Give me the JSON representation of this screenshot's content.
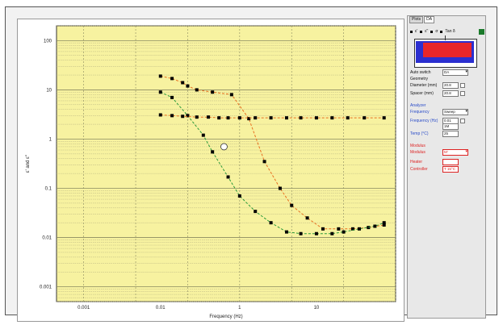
{
  "panel": {
    "tabs": [
      "Plots",
      "DA"
    ],
    "active_tab": "DA",
    "legend_items": [
      "ε'",
      "ε''",
      "σ",
      "Tan δ"
    ],
    "auto_switch_label": "Auto switch",
    "auto_switch_value": "DA",
    "geometry_label": "Geometry",
    "diameter_label": "Diameter (mm)",
    "diameter_value": "20.8",
    "spacer_label": "Spacer (mm)",
    "spacer_value": "20.8",
    "analyzer_section": "Analyzer",
    "analyzer_mode_label": "Frequency",
    "analyzer_mode_value": "Sweep",
    "freq_label": "Frequency (Hz)",
    "freq_value": "0.01",
    "freq_value2": "1M",
    "temp_label": "Temp (°C)",
    "temp_value": "25",
    "modulus_section": "Modulus",
    "modulus_mode_label": "Modulus",
    "modulus_mode_value": "M'",
    "heater_label": "Heater",
    "controller_label": "Controller",
    "controller_value": "T 15°C"
  },
  "colors": {
    "plot_bg": "#f7f2a0",
    "series_orange": "#e87020",
    "series_green": "#2a9a3a",
    "accent_blue": "#2b2fd0",
    "accent_red": "#e8262a"
  },
  "chart_data": {
    "type": "scatter",
    "xlabel": "Frequency (Hz)",
    "ylabel": "ε' and ε''",
    "xscale": "log",
    "yscale": "log",
    "xlim": [
      0.0003,
      1000
    ],
    "ylim": [
      0.0005,
      200
    ],
    "x_ticks": [
      "0.001",
      "0.01",
      "1",
      "10"
    ],
    "y_ticks": [
      "100",
      "10",
      "1",
      "0.1",
      "0.01",
      "0.001"
    ],
    "grid": true,
    "series": [
      {
        "color": "#e87020",
        "x": [
          0.03,
          0.05,
          0.08,
          0.1,
          0.15,
          0.3,
          0.7,
          1.5,
          3,
          6,
          10,
          20,
          40,
          80,
          150,
          300,
          600
        ],
        "y": [
          19,
          17,
          14,
          12,
          10,
          9,
          8,
          2.6,
          0.35,
          0.1,
          0.045,
          0.025,
          0.015,
          0.015,
          0.015,
          0.016,
          0.018
        ]
      },
      {
        "color": "#2a9a3a",
        "x": [
          0.03,
          0.05,
          0.1,
          0.2,
          0.3,
          0.6,
          1,
          2,
          4,
          8,
          15,
          30,
          60,
          100,
          200,
          400,
          600
        ],
        "y": [
          9,
          7,
          3,
          1.2,
          0.55,
          0.17,
          0.07,
          0.034,
          0.02,
          0.013,
          0.012,
          0.012,
          0.012,
          0.013,
          0.015,
          0.017,
          0.02
        ]
      },
      {
        "color": "#e87020",
        "x": [
          0.03,
          0.05,
          0.08,
          0.15,
          0.25,
          0.4,
          0.6,
          1,
          2,
          4,
          8,
          15,
          30,
          60,
          120,
          250,
          600
        ],
        "y": [
          3.1,
          3.0,
          2.9,
          2.8,
          2.8,
          2.7,
          2.7,
          2.7,
          2.7,
          2.7,
          2.7,
          2.7,
          2.7,
          2.7,
          2.7,
          2.7,
          2.7
        ]
      }
    ]
  }
}
